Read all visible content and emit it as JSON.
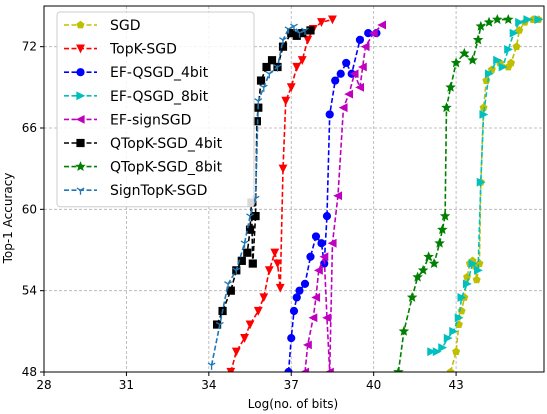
{
  "chart_data": {
    "type": "line",
    "title": "",
    "xlabel": "Log(no. of bits)",
    "ylabel": "Top-1 Accuracy",
    "xlim": [
      28,
      46.2
    ],
    "ylim": [
      48,
      75
    ],
    "xticks": [
      28,
      31,
      34,
      37,
      40,
      43
    ],
    "yticks": [
      48,
      54,
      60,
      66,
      72
    ],
    "grid": true,
    "legend_position": "top-left",
    "series": [
      {
        "name": "SGD",
        "color": "#bfbf00",
        "marker": "pentagon",
        "points": [
          [
            42.8,
            48.0
          ],
          [
            43.0,
            49.5
          ],
          [
            43.1,
            51.5
          ],
          [
            43.2,
            52.5
          ],
          [
            43.3,
            53.5
          ],
          [
            43.4,
            55.0
          ],
          [
            43.5,
            56.0
          ],
          [
            43.6,
            56.2
          ],
          [
            43.7,
            55.8
          ],
          [
            43.75,
            54.8
          ],
          [
            43.85,
            56.0
          ],
          [
            43.9,
            62.0
          ],
          [
            44.0,
            67.5
          ],
          [
            44.1,
            69.5
          ],
          [
            44.3,
            70.3
          ],
          [
            44.6,
            70.8
          ],
          [
            44.9,
            70.5
          ],
          [
            45.0,
            70.8
          ],
          [
            45.2,
            72.0
          ],
          [
            45.3,
            73.2
          ],
          [
            45.5,
            73.8
          ],
          [
            45.8,
            74.0
          ],
          [
            46.0,
            74.0
          ]
        ]
      },
      {
        "name": "TopK-SGD",
        "color": "#ff0000",
        "marker": "triangle-down",
        "points": [
          [
            34.8,
            48.0
          ],
          [
            35.0,
            49.5
          ],
          [
            35.3,
            50.5
          ],
          [
            35.5,
            51.5
          ],
          [
            35.8,
            52.5
          ],
          [
            36.0,
            53.5
          ],
          [
            36.2,
            55.5
          ],
          [
            36.4,
            56.8
          ],
          [
            36.5,
            56.0
          ],
          [
            36.6,
            54.2
          ],
          [
            36.7,
            63.0
          ],
          [
            36.8,
            68.0
          ],
          [
            37.0,
            69.0
          ],
          [
            37.2,
            70.5
          ],
          [
            37.4,
            71.0
          ],
          [
            37.6,
            72.5
          ],
          [
            37.8,
            73.3
          ],
          [
            38.1,
            73.8
          ],
          [
            38.5,
            74.0
          ]
        ]
      },
      {
        "name": "EF-QSGD_4bit",
        "color": "#0000ff",
        "marker": "circle",
        "points": [
          [
            36.9,
            48.0
          ],
          [
            37.0,
            50.5
          ],
          [
            37.1,
            52.5
          ],
          [
            37.2,
            53.5
          ],
          [
            37.3,
            54.0
          ],
          [
            37.5,
            54.5
          ],
          [
            37.7,
            56.5
          ],
          [
            37.9,
            58.0
          ],
          [
            38.1,
            57.5
          ],
          [
            38.2,
            56.0
          ],
          [
            38.3,
            59.5
          ],
          [
            38.4,
            67.0
          ],
          [
            38.6,
            69.5
          ],
          [
            38.8,
            70.0
          ],
          [
            39.0,
            70.8
          ],
          [
            39.2,
            70.0
          ],
          [
            39.5,
            72.5
          ],
          [
            39.8,
            73.0
          ],
          [
            40.1,
            73.0
          ]
        ]
      },
      {
        "name": "EF-QSGD_8bit",
        "color": "#00bfbf",
        "marker": "triangle-right",
        "points": [
          [
            42.1,
            49.5
          ],
          [
            42.3,
            49.5
          ],
          [
            42.5,
            49.8
          ],
          [
            42.7,
            50.5
          ],
          [
            42.9,
            51.0
          ],
          [
            43.1,
            52.0
          ],
          [
            43.2,
            53.5
          ],
          [
            43.4,
            54.5
          ],
          [
            43.6,
            56.0
          ],
          [
            43.8,
            55.5
          ],
          [
            43.9,
            62.0
          ],
          [
            44.0,
            67.0
          ],
          [
            44.2,
            70.0
          ],
          [
            44.5,
            71.0
          ],
          [
            44.7,
            70.5
          ],
          [
            44.9,
            71.8
          ],
          [
            45.1,
            73.0
          ],
          [
            45.3,
            73.8
          ],
          [
            45.6,
            74.0
          ],
          [
            46.0,
            74.0
          ]
        ]
      },
      {
        "name": "EF-signSGD",
        "color": "#bf00bf",
        "marker": "triangle-left",
        "points": [
          [
            37.5,
            48.0
          ],
          [
            37.6,
            50.0
          ],
          [
            37.8,
            52.0
          ],
          [
            37.9,
            53.5
          ],
          [
            38.0,
            55.5
          ],
          [
            38.2,
            56.5
          ],
          [
            38.3,
            52.0
          ],
          [
            38.4,
            48.0
          ],
          [
            38.5,
            57.5
          ],
          [
            38.7,
            61.0
          ],
          [
            38.9,
            67.5
          ],
          [
            39.1,
            68.5
          ],
          [
            39.3,
            70.0
          ],
          [
            39.5,
            69.0
          ],
          [
            39.6,
            70.5
          ],
          [
            39.7,
            72.0
          ],
          [
            40.0,
            73.0
          ],
          [
            40.3,
            73.6
          ]
        ]
      },
      {
        "name": "QTopK-SGD_4bit",
        "color": "#000000",
        "marker": "square",
        "points": [
          [
            34.3,
            51.5
          ],
          [
            34.5,
            52.5
          ],
          [
            34.8,
            54.0
          ],
          [
            35.0,
            55.5
          ],
          [
            35.2,
            56.2
          ],
          [
            35.4,
            56.8
          ],
          [
            35.5,
            58.5
          ],
          [
            35.55,
            60.5
          ],
          [
            35.6,
            56.0
          ],
          [
            35.7,
            59.5
          ],
          [
            35.75,
            66.5
          ],
          [
            35.8,
            67.5
          ],
          [
            35.9,
            69.5
          ],
          [
            36.1,
            70.5
          ],
          [
            36.3,
            71.0
          ],
          [
            36.5,
            70.5
          ],
          [
            36.7,
            72.0
          ],
          [
            37.0,
            73.0
          ],
          [
            37.2,
            72.8
          ],
          [
            37.4,
            73.0
          ],
          [
            37.7,
            73.2
          ]
        ]
      },
      {
        "name": "QTopK-SGD_8bit",
        "color": "#008000",
        "marker": "star",
        "points": [
          [
            40.9,
            48.0
          ],
          [
            41.1,
            51.0
          ],
          [
            41.4,
            53.5
          ],
          [
            41.6,
            55.0
          ],
          [
            41.8,
            55.5
          ],
          [
            42.0,
            56.5
          ],
          [
            42.2,
            56.0
          ],
          [
            42.4,
            57.5
          ],
          [
            42.5,
            58.5
          ],
          [
            42.6,
            59.5
          ],
          [
            42.65,
            67.5
          ],
          [
            42.8,
            69.0
          ],
          [
            43.0,
            70.8
          ],
          [
            43.3,
            71.5
          ],
          [
            43.6,
            71.0
          ],
          [
            43.8,
            72.5
          ],
          [
            43.9,
            73.5
          ],
          [
            44.2,
            73.8
          ],
          [
            44.5,
            74.0
          ],
          [
            44.9,
            74.0
          ]
        ]
      },
      {
        "name": "SignTopK-SGD",
        "color": "#1f77b4",
        "marker": "tri-down",
        "points": [
          [
            34.1,
            48.5
          ],
          [
            34.4,
            51.5
          ],
          [
            34.7,
            54.5
          ],
          [
            35.0,
            55.5
          ],
          [
            35.3,
            57.5
          ],
          [
            35.5,
            59.5
          ],
          [
            35.7,
            60.8
          ],
          [
            35.8,
            68.0
          ],
          [
            36.0,
            69.0
          ],
          [
            36.2,
            70.0
          ],
          [
            36.5,
            70.5
          ],
          [
            36.7,
            72.5
          ],
          [
            36.9,
            73.3
          ],
          [
            37.1,
            73.5
          ],
          [
            37.3,
            73.0
          ],
          [
            37.5,
            73.2
          ]
        ]
      }
    ]
  }
}
